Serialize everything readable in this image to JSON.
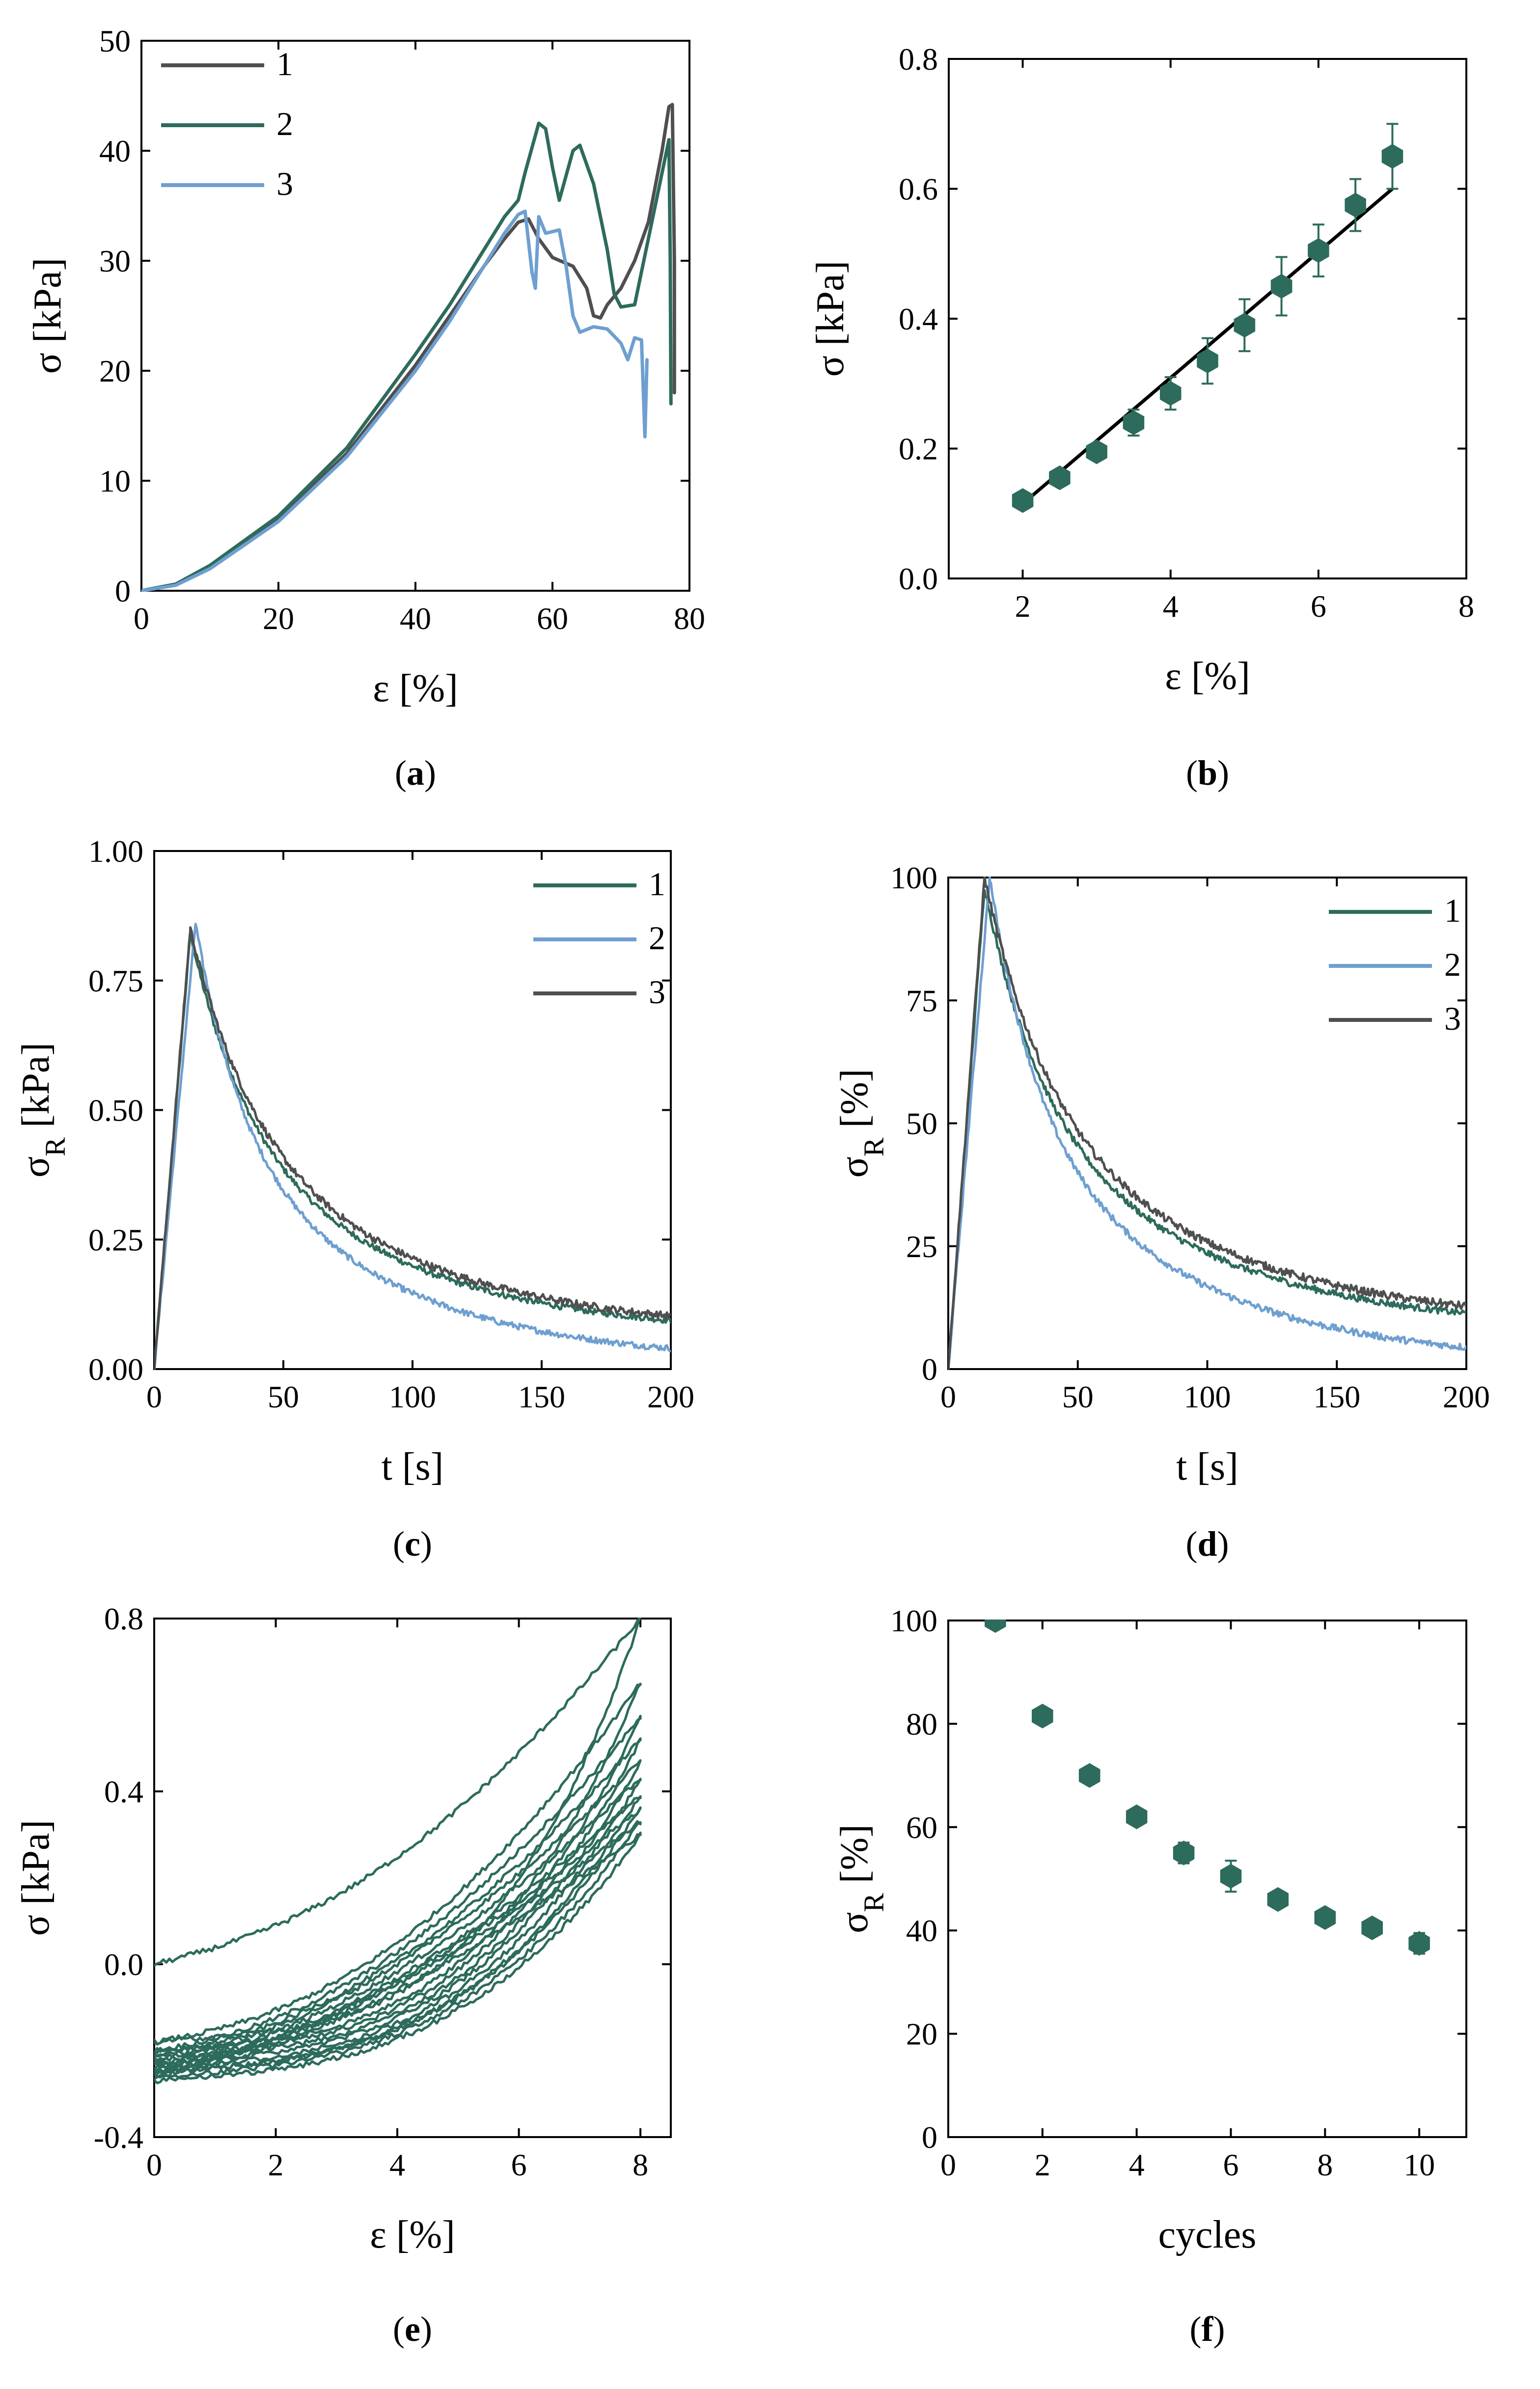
{
  "colors": {
    "dark_gray": "#4f4f4f",
    "teal": "#2d6b5c",
    "blue": "#6e9fd0",
    "marker": "#2d6b5c"
  },
  "chart_data": [
    {
      "id": "a",
      "type": "line",
      "panel_label": "a",
      "xlabel": "ε [%]",
      "ylabel": "σ [kPa]",
      "xlim": [
        0,
        80
      ],
      "ylim": [
        0,
        50
      ],
      "xticks": [
        0,
        20,
        40,
        60,
        80
      ],
      "yticks": [
        0,
        10,
        20,
        30,
        40,
        50
      ],
      "legend": {
        "position": "top-left"
      },
      "series": [
        {
          "name": "1",
          "color": "#4f4f4f",
          "x": [
            0,
            5,
            10,
            20,
            30,
            40,
            45,
            50,
            53,
            55,
            56.5,
            58,
            60,
            63,
            65,
            66,
            67,
            68,
            70,
            72,
            74,
            76,
            77,
            77.5,
            77.8,
            77.8
          ],
          "y": [
            0,
            0.6,
            2.2,
            6.5,
            12.5,
            20.5,
            25,
            29.5,
            32,
            33.5,
            33.8,
            32,
            30.3,
            29.5,
            27.5,
            25,
            24.8,
            26,
            27.5,
            30,
            33.5,
            40,
            44,
            44.2,
            30,
            18
          ]
        },
        {
          "name": "2",
          "color": "#2d6b5c",
          "x": [
            0,
            5,
            10,
            20,
            30,
            40,
            45,
            50,
            53,
            55,
            56,
            58,
            59,
            60,
            61,
            63,
            64,
            66,
            67,
            68,
            69,
            70,
            72,
            74,
            76,
            77,
            77.2,
            77.3
          ],
          "y": [
            0,
            0.6,
            2.3,
            6.8,
            13,
            21.5,
            26,
            31,
            34,
            35.5,
            38,
            42.5,
            42,
            38.5,
            35.5,
            40,
            40.5,
            37,
            34,
            31,
            27,
            25.8,
            26,
            32,
            38,
            41,
            30,
            17
          ]
        },
        {
          "name": "3",
          "color": "#6e9fd0",
          "x": [
            0,
            5,
            10,
            20,
            30,
            40,
            45,
            50,
            53,
            55,
            56,
            57,
            57.5,
            58,
            59,
            61,
            62,
            63,
            64,
            66,
            68,
            70,
            71,
            72,
            73,
            73.5,
            73.8
          ],
          "y": [
            0,
            0.5,
            2.0,
            6.3,
            12.2,
            20,
            24.5,
            29.5,
            32.5,
            34.2,
            34.5,
            29,
            27.5,
            34,
            32.5,
            32.8,
            29.5,
            25,
            23.5,
            24,
            23.8,
            22.5,
            21,
            23,
            22.8,
            14,
            21
          ]
        }
      ]
    },
    {
      "id": "b",
      "type": "scatter",
      "panel_label": "b",
      "xlabel": "ε [%]",
      "ylabel": "σ [kPa]",
      "xlim": [
        1,
        8
      ],
      "ylim": [
        0,
        0.8
      ],
      "xticks": [
        2,
        4,
        6,
        8
      ],
      "yticks": [
        0.0,
        0.2,
        0.4,
        0.6,
        0.8
      ],
      "ytick_labels": [
        "0.0",
        "0.2",
        "0.4",
        "0.6",
        "0.8"
      ],
      "x": [
        2,
        2.5,
        3,
        3.5,
        4,
        4.5,
        5,
        5.5,
        6,
        6.5,
        7
      ],
      "y": [
        0.12,
        0.155,
        0.195,
        0.24,
        0.285,
        0.335,
        0.39,
        0.45,
        0.505,
        0.575,
        0.65
      ],
      "yerr": [
        0.008,
        0.01,
        0.012,
        0.02,
        0.025,
        0.035,
        0.04,
        0.045,
        0.04,
        0.04,
        0.05
      ],
      "fit": {
        "x": [
          2,
          7
        ],
        "y": [
          0.115,
          0.6
        ]
      }
    },
    {
      "id": "c",
      "type": "line",
      "panel_label": "c",
      "xlabel": "t [s]",
      "ylabel": "σR [kPa]",
      "ylabel_main": "σ",
      "ylabel_sub": "R",
      "ylabel_unit": " [kPa]",
      "xlim": [
        0,
        200
      ],
      "ylim": [
        0,
        1.0
      ],
      "xticks": [
        0,
        50,
        100,
        150,
        200
      ],
      "yticks": [
        0,
        0.25,
        0.5,
        0.75,
        1.0
      ],
      "ytick_labels": [
        "0.00",
        "0.25",
        "0.50",
        "0.75",
        "1.00"
      ],
      "legend": {
        "position": "top-right"
      },
      "series": [
        {
          "name": "1",
          "color": "#2d6b5c",
          "peak_t": 14,
          "peak_v": 0.84,
          "end_v": 0.065,
          "k_fast": 22,
          "k_slow": 90,
          "noise": 0.006
        },
        {
          "name": "2",
          "color": "#6e9fd0",
          "peak_t": 16,
          "peak_v": 0.86,
          "end_v": 0.015,
          "k_fast": 18,
          "k_slow": 80,
          "noise": 0.006
        },
        {
          "name": "3",
          "color": "#4f4f4f",
          "peak_t": 14,
          "peak_v": 0.85,
          "end_v": 0.07,
          "k_fast": 24,
          "k_slow": 95,
          "noise": 0.007
        }
      ]
    },
    {
      "id": "d",
      "type": "line",
      "panel_label": "d",
      "xlabel": "t [s]",
      "ylabel": "σR [%]",
      "ylabel_main": "σ",
      "ylabel_sub": "R",
      "ylabel_unit": " [%]",
      "xlim": [
        0,
        200
      ],
      "ylim": [
        0,
        100
      ],
      "xticks": [
        0,
        50,
        100,
        150,
        200
      ],
      "yticks": [
        0,
        25,
        50,
        75,
        100
      ],
      "legend": {
        "position": "top-right"
      },
      "series": [
        {
          "name": "1",
          "color": "#2d6b5c",
          "peak_t": 14,
          "peak_v": 98,
          "end_v": 8,
          "k_fast": 22,
          "k_slow": 90,
          "noise": 0.7
        },
        {
          "name": "2",
          "color": "#6e9fd0",
          "peak_t": 16,
          "peak_v": 100,
          "end_v": 1.5,
          "k_fast": 18,
          "k_slow": 80,
          "noise": 0.7
        },
        {
          "name": "3",
          "color": "#4f4f4f",
          "peak_t": 14,
          "peak_v": 100,
          "end_v": 9,
          "k_fast": 24,
          "k_slow": 95,
          "noise": 0.8
        }
      ]
    },
    {
      "id": "e",
      "type": "line",
      "panel_label": "e",
      "xlabel": "ε [%]",
      "ylabel": "σ [kPa]",
      "xlim": [
        0,
        8.5
      ],
      "ylim": [
        -0.4,
        0.8
      ],
      "xticks": [
        0,
        2,
        4,
        6,
        8
      ],
      "yticks": [
        -0.4,
        0.0,
        0.4,
        0.8
      ],
      "ytick_labels": [
        "-0.4",
        "0.0",
        "0.4",
        "0.8"
      ],
      "description": "10 loading/unloading cycles to 8% strain",
      "cycles": [
        {
          "load_start": 0.0,
          "peak": 0.8,
          "load_exp": 2.6,
          "unload_end": -0.18
        },
        {
          "load_start": -0.18,
          "peak": 0.65,
          "load_exp": 2.4,
          "unload_end": -0.2
        },
        {
          "load_start": -0.2,
          "peak": 0.57,
          "load_exp": 2.3,
          "unload_end": -0.21
        },
        {
          "load_start": -0.21,
          "peak": 0.52,
          "load_exp": 2.3,
          "unload_end": -0.22
        },
        {
          "load_start": -0.22,
          "peak": 0.47,
          "load_exp": 2.2,
          "unload_end": -0.23
        },
        {
          "load_start": -0.23,
          "peak": 0.43,
          "load_exp": 2.2,
          "unload_end": -0.24
        },
        {
          "load_start": -0.24,
          "peak": 0.39,
          "load_exp": 2.2,
          "unload_end": -0.25
        },
        {
          "load_start": -0.25,
          "peak": 0.36,
          "load_exp": 2.1,
          "unload_end": -0.25
        },
        {
          "load_start": -0.25,
          "peak": 0.33,
          "load_exp": 2.1,
          "unload_end": -0.26
        },
        {
          "load_start": -0.26,
          "peak": 0.3,
          "load_exp": 2.1,
          "unload_end": -0.27
        }
      ]
    },
    {
      "id": "f",
      "type": "scatter",
      "panel_label": "f",
      "xlabel": "cycles",
      "ylabel": "σR [%]",
      "ylabel_main": "σ",
      "ylabel_sub": "R",
      "ylabel_unit": " [%]",
      "xlim": [
        0,
        11
      ],
      "ylim": [
        0,
        100
      ],
      "xticks": [
        0,
        2,
        4,
        6,
        8,
        10
      ],
      "yticks": [
        0,
        20,
        40,
        60,
        80,
        100
      ],
      "x": [
        1,
        2,
        3,
        4,
        5,
        6,
        7,
        8,
        9,
        10
      ],
      "y": [
        100,
        81.5,
        70,
        62,
        55,
        50.5,
        46,
        42.5,
        40.5,
        37.5
      ],
      "yerr": [
        0.5,
        1.2,
        1.2,
        1.5,
        2.0,
        3.0,
        1.5,
        1.2,
        1.2,
        2.0
      ]
    }
  ]
}
